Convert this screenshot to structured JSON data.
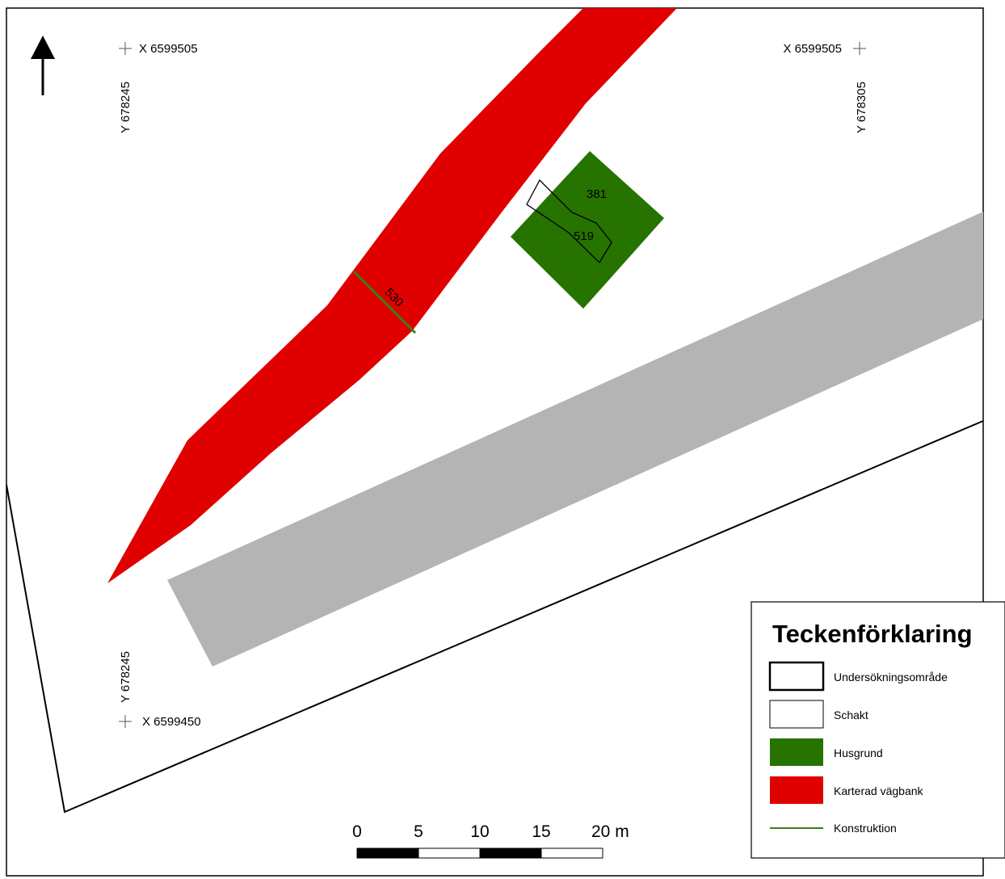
{
  "map": {
    "coordinates": {
      "top_left_x": "X 6599505",
      "top_left_y": "Y 678245",
      "top_right_x": "X 6599505",
      "top_right_y": "Y 678305",
      "bottom_left_x": "X 6599450",
      "bottom_left_y": "Y 678245"
    },
    "features": {
      "road_bank_color": "#e00000",
      "house_color": "#267300",
      "gray_band_color": "#b4b4b4",
      "construction_color": "#3a7d1c",
      "label_381": "381",
      "label_519": "519",
      "label_530": "530"
    },
    "north_arrow": "north-arrow-icon"
  },
  "scale_bar": {
    "ticks": [
      "0",
      "5",
      "10",
      "15",
      "20 m"
    ]
  },
  "legend": {
    "title": "Teckenförklaring",
    "items": [
      {
        "label": "Undersökningsområde",
        "symbol": "thick-outline-box"
      },
      {
        "label": "Schakt",
        "symbol": "thin-outline-box"
      },
      {
        "label": "Husgrund",
        "symbol": "green-fill-box",
        "color": "#267300"
      },
      {
        "label": "Karterad vägbank",
        "symbol": "red-fill-box",
        "color": "#e00000"
      },
      {
        "label": "Konstruktion",
        "symbol": "green-line",
        "color": "#3a7d1c"
      }
    ]
  }
}
